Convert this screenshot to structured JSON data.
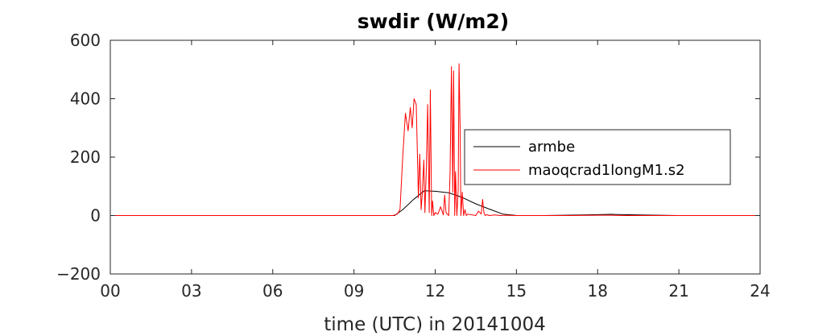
{
  "chart_data": {
    "type": "line",
    "title": "swdir  (W/m2)",
    "xlabel": "time (UTC) in 20141004",
    "ylabel": "",
    "xlim": [
      0,
      24
    ],
    "ylim": [
      -200,
      600
    ],
    "x_ticks": [
      0,
      3,
      6,
      9,
      12,
      15,
      18,
      21,
      24
    ],
    "x_tick_labels": [
      "00",
      "03",
      "06",
      "09",
      "12",
      "15",
      "18",
      "21",
      "24"
    ],
    "y_ticks": [
      -200,
      0,
      200,
      400,
      600
    ],
    "y_tick_labels": [
      "−200",
      "0",
      "200",
      "400",
      "600"
    ],
    "grid": false,
    "legend_position": "right-center",
    "series": [
      {
        "name": "armbe",
        "color": "#000000",
        "x": [
          0,
          10.5,
          10.8,
          11.2,
          11.6,
          12.0,
          12.5,
          13.0,
          13.5,
          14.0,
          14.5,
          15.0,
          16.0,
          17.5,
          18.5,
          19.5,
          21.0,
          24.0
        ],
        "y": [
          0,
          0,
          20,
          55,
          85,
          83,
          78,
          62,
          40,
          22,
          5,
          0,
          0,
          2,
          4,
          2,
          0,
          0
        ]
      },
      {
        "name": "maoqcrad1longM1.s2",
        "color": "#ff0000",
        "x": [
          0,
          10.45,
          10.6,
          10.7,
          10.8,
          10.9,
          11.0,
          11.08,
          11.15,
          11.22,
          11.3,
          11.38,
          11.43,
          11.48,
          11.52,
          11.58,
          11.62,
          11.67,
          11.72,
          11.78,
          11.82,
          11.87,
          11.9,
          11.95,
          12.0,
          12.1,
          12.2,
          12.3,
          12.35,
          12.4,
          12.5,
          12.55,
          12.6,
          12.65,
          12.68,
          12.72,
          12.75,
          12.8,
          12.85,
          12.88,
          12.92,
          12.95,
          13.0,
          13.05,
          13.1,
          13.15,
          13.2,
          13.5,
          13.6,
          13.7,
          13.75,
          13.8,
          13.85,
          13.9,
          14.0,
          14.2,
          14.4,
          14.6,
          15.0,
          16.0,
          17.0,
          18.0,
          18.5,
          19.0,
          20.0,
          24.0
        ],
        "y": [
          0,
          0,
          5,
          20,
          200,
          350,
          290,
          370,
          300,
          400,
          380,
          60,
          210,
          20,
          70,
          190,
          10,
          150,
          380,
          10,
          430,
          0,
          50,
          0,
          10,
          5,
          30,
          2,
          70,
          10,
          0,
          150,
          510,
          80,
          495,
          0,
          150,
          0,
          90,
          520,
          300,
          0,
          80,
          0,
          20,
          0,
          5,
          0,
          15,
          5,
          55,
          10,
          0,
          3,
          0,
          2,
          0,
          1,
          0,
          0,
          0,
          1,
          1,
          0,
          0,
          0
        ]
      }
    ]
  }
}
